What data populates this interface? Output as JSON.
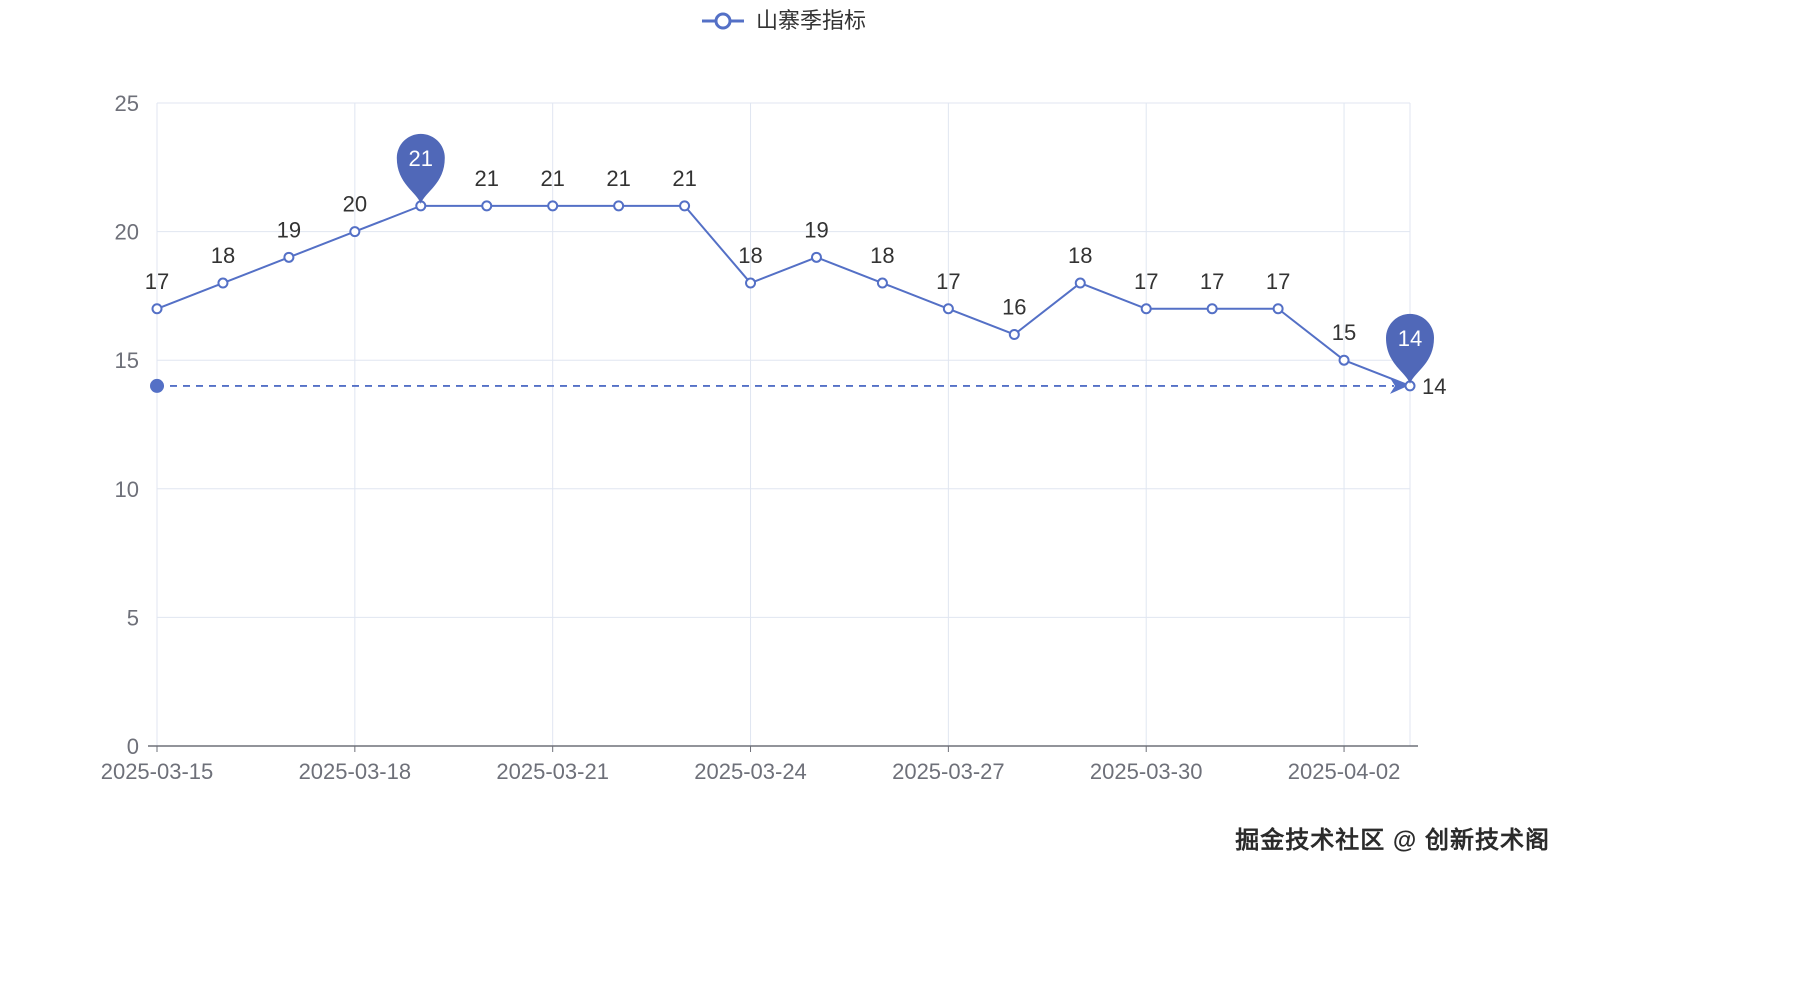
{
  "legend": {
    "label": "山寨季指标"
  },
  "watermark": "掘金技术社区 @ 创新技术阁",
  "colors": {
    "line": "#5470c6",
    "grid": "#e0e6f1",
    "axis": "#6e7079",
    "axis_label": "#6e7079",
    "point_label": "#333333",
    "pin_fill": "#5068b8",
    "pin_text": "#ffffff",
    "background": "#ffffff",
    "watermark_text": "#2b2b2b"
  },
  "chart_data": {
    "type": "line",
    "title": "山寨季指标",
    "x": [
      "2025-03-15",
      "2025-03-16",
      "2025-03-17",
      "2025-03-18",
      "2025-03-19",
      "2025-03-20",
      "2025-03-21",
      "2025-03-22",
      "2025-03-23",
      "2025-03-24",
      "2025-03-25",
      "2025-03-26",
      "2025-03-27",
      "2025-03-28",
      "2025-03-29",
      "2025-03-30",
      "2025-03-31",
      "2025-04-01",
      "2025-04-02",
      "2025-04-03"
    ],
    "values": [
      17,
      18,
      19,
      20,
      21,
      21,
      21,
      21,
      21,
      18,
      19,
      18,
      17,
      16,
      18,
      17,
      17,
      17,
      15,
      14
    ],
    "x_tick_indices": [
      0,
      3,
      6,
      9,
      12,
      15,
      18
    ],
    "x_tick_labels": [
      "2025-03-15",
      "2025-03-18",
      "2025-03-21",
      "2025-03-24",
      "2025-03-27",
      "2025-03-30",
      "2025-04-02"
    ],
    "y_ticks": [
      0,
      5,
      10,
      15,
      20,
      25
    ],
    "ylim": [
      0,
      25
    ],
    "grid": true,
    "legend_position": "top-center",
    "mark_points": [
      {
        "index": 4,
        "value": 21,
        "label": "21"
      },
      {
        "index": 19,
        "value": 14,
        "label": "14"
      }
    ],
    "mark_line": {
      "value": 14,
      "label": "14"
    }
  }
}
